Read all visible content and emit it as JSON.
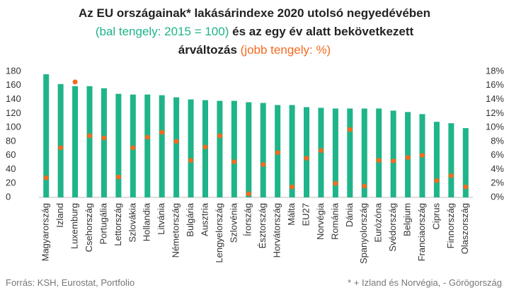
{
  "chart_data": {
    "type": "bar",
    "title": [
      "Az EU országainak* lakásárindexe 2020 utolsó negyedévében",
      "(bal tengely: 2015 = 100)",
      "és az egy év alatt bekövetkezett",
      "árváltozás",
      "(jobb tengely: %)"
    ],
    "source": "Forrás: KSH, Eurostat, Portfolio",
    "note": "* + Izland és Norvégia, - Görögország",
    "categories": [
      "Magyarország",
      "Izland",
      "Luxemburg",
      "Csehország",
      "Portugália",
      "Lettország",
      "Szlovákia",
      "Hollandia",
      "Litvánia",
      "Németország",
      "Bulgária",
      "Ausztria",
      "Lengyelország",
      "Szlovénia",
      "Írország",
      "Észtország",
      "Horvátország",
      "Málta",
      "EU27",
      "Norvégia",
      "Románia",
      "Dánia",
      "Spanyolország",
      "Eurózóna",
      "Svédország",
      "Belgium",
      "Franciaország",
      "Ciprus",
      "Finnország",
      "Olaszország"
    ],
    "series": [
      {
        "type": "bar",
        "color": "#1fb489",
        "values": [
          176,
          162,
          159,
          159,
          156,
          148,
          147,
          147,
          146,
          143,
          140,
          139,
          138,
          138,
          136,
          135,
          132,
          132,
          129,
          128,
          127,
          127,
          127,
          127,
          124,
          122,
          119,
          108,
          106,
          99
        ]
      },
      {
        "type": "scatter",
        "axis": "y2",
        "color": "#f46a1f",
        "values": [
          2.8,
          7.1,
          16.5,
          8.8,
          8.5,
          2.9,
          7.1,
          8.6,
          9.3,
          8.0,
          5.3,
          7.2,
          8.8,
          5.1,
          0.5,
          4.7,
          6.4,
          1.5,
          5.6,
          6.7,
          2.0,
          9.7,
          1.6,
          5.3,
          5.2,
          5.7,
          6.0,
          2.4,
          3.1,
          1.5
        ]
      }
    ],
    "ylim": [
      0,
      180
    ],
    "yticks": [
      0,
      20,
      40,
      60,
      80,
      100,
      120,
      140,
      160,
      180
    ],
    "y2lim": [
      0,
      18
    ],
    "y2ticks": [
      {
        "value": 0,
        "label": "0%"
      },
      {
        "value": 2,
        "label": "2%"
      },
      {
        "value": 4,
        "label": "4%"
      },
      {
        "value": 6,
        "label": "6%"
      },
      {
        "value": 8,
        "label": "8%"
      },
      {
        "value": 10,
        "label": "10%"
      },
      {
        "value": 12,
        "label": "12%"
      },
      {
        "value": 14,
        "label": "14%"
      },
      {
        "value": 16,
        "label": "16%"
      },
      {
        "value": 18,
        "label": "18%"
      }
    ],
    "grid": false
  }
}
